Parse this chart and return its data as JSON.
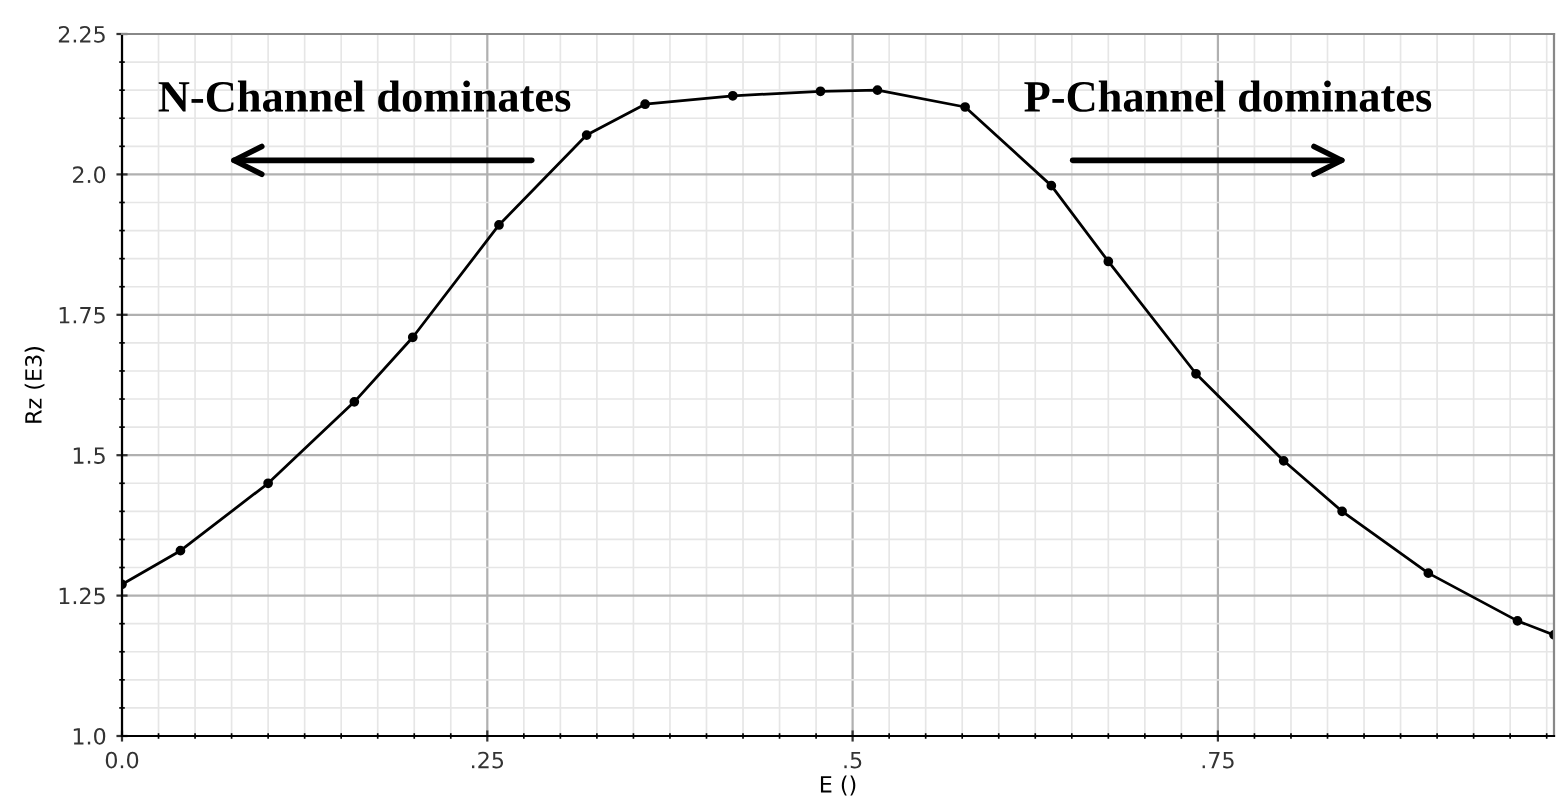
{
  "chart_data": {
    "type": "line",
    "xlabel": "E ()",
    "ylabel": "Rz (E3)",
    "x": [
      0.0,
      0.04,
      0.1,
      0.159,
      0.199,
      0.258,
      0.318,
      0.358,
      0.418,
      0.478,
      0.517,
      0.577,
      0.636,
      0.675,
      0.735,
      0.795,
      0.835,
      0.894,
      0.955,
      0.98
    ],
    "series": [
      {
        "color": "#000000",
        "values": [
          1.27,
          1.33,
          1.45,
          1.595,
          1.71,
          1.91,
          2.07,
          2.125,
          2.14,
          2.148,
          2.15,
          2.12,
          1.98,
          1.845,
          1.645,
          1.49,
          1.4,
          1.29,
          1.205,
          1.18
        ]
      }
    ],
    "xlim": [
      0,
      0.98
    ],
    "ylim": [
      1.0,
      2.25
    ],
    "xticks": [
      {
        "value": 0,
        "label": "0.0"
      },
      {
        "value": 0.25,
        "label": ".25"
      },
      {
        "value": 0.5,
        "label": ".5"
      },
      {
        "value": 0.75,
        "label": ".75"
      }
    ],
    "yticks": [
      {
        "value": 1.0,
        "label": "1.0"
      },
      1.25,
      1.5,
      1.75,
      {
        "value": 2.0,
        "label": "2.0"
      },
      2.25
    ],
    "grid": true,
    "marker": "circle",
    "line_style": "solid",
    "annotations": [
      "N-Channel dominates",
      "P-Channel dominates"
    ]
  }
}
